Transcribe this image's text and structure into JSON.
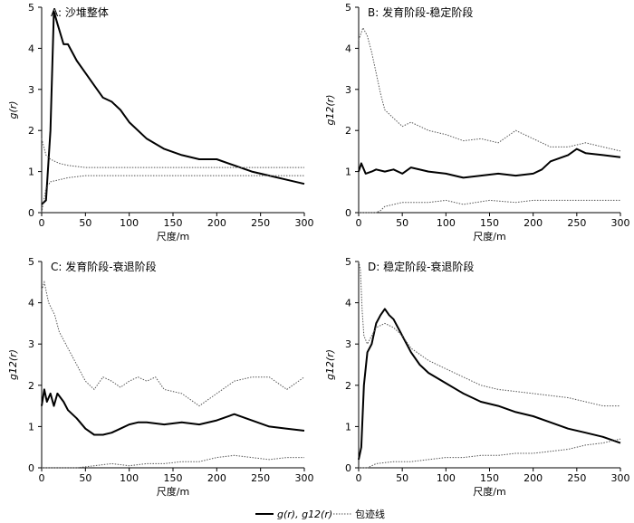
{
  "chart_data": [
    {
      "type": "line",
      "title": "A: 沙堆整体",
      "xlabel": "尺度/m",
      "ylabel": "g(r)",
      "xlim": [
        0,
        300
      ],
      "ylim": [
        0,
        5
      ],
      "xticks": [
        "0",
        "50",
        "100",
        "150",
        "200",
        "250",
        "300"
      ],
      "yticks": [
        "0",
        "1",
        "2",
        "3",
        "4",
        "5"
      ],
      "grid": false,
      "series": [
        {
          "role": "main",
          "style": "solid",
          "x": [
            0,
            5,
            10,
            14,
            18,
            25,
            30,
            40,
            50,
            60,
            70,
            80,
            90,
            100,
            120,
            140,
            160,
            180,
            200,
            220,
            240,
            260,
            280,
            300
          ],
          "y": [
            0.2,
            0.3,
            2.0,
            4.9,
            4.6,
            4.1,
            4.1,
            3.7,
            3.4,
            3.1,
            2.8,
            2.7,
            2.5,
            2.2,
            1.8,
            1.55,
            1.4,
            1.3,
            1.3,
            1.15,
            1.0,
            0.9,
            0.8,
            0.7
          ]
        },
        {
          "role": "envelope-upper",
          "style": "dotted",
          "x": [
            0,
            5,
            10,
            20,
            30,
            50,
            100,
            150,
            200,
            250,
            300
          ],
          "y": [
            1.8,
            1.4,
            1.3,
            1.2,
            1.15,
            1.1,
            1.1,
            1.1,
            1.1,
            1.1,
            1.1
          ]
        },
        {
          "role": "envelope-lower",
          "style": "dotted",
          "x": [
            0,
            5,
            10,
            20,
            30,
            50,
            100,
            150,
            200,
            250,
            300
          ],
          "y": [
            0.0,
            0.6,
            0.75,
            0.8,
            0.85,
            0.9,
            0.9,
            0.9,
            0.9,
            0.9,
            0.9
          ]
        }
      ]
    },
    {
      "type": "line",
      "title": "B: 发育阶段-稳定阶段",
      "xlabel": "尺度/m",
      "ylabel": "g12(r)",
      "xlim": [
        0,
        300
      ],
      "ylim": [
        0,
        5
      ],
      "xticks": [
        "0",
        "50",
        "100",
        "150",
        "200",
        "250",
        "300"
      ],
      "yticks": [
        "0",
        "1",
        "2",
        "3",
        "4",
        "5"
      ],
      "grid": false,
      "series": [
        {
          "role": "main",
          "style": "solid",
          "x": [
            0,
            3,
            8,
            15,
            20,
            30,
            40,
            50,
            60,
            80,
            100,
            120,
            140,
            160,
            180,
            200,
            210,
            220,
            240,
            250,
            260,
            280,
            300
          ],
          "y": [
            1.0,
            1.2,
            0.95,
            1.0,
            1.05,
            1.0,
            1.05,
            0.95,
            1.1,
            1.0,
            0.95,
            0.85,
            0.9,
            0.95,
            0.9,
            0.95,
            1.05,
            1.25,
            1.4,
            1.55,
            1.45,
            1.4,
            1.35
          ]
        },
        {
          "role": "envelope-upper",
          "style": "dotted",
          "x": [
            0,
            5,
            10,
            15,
            20,
            25,
            30,
            40,
            50,
            60,
            80,
            100,
            120,
            140,
            160,
            170,
            180,
            200,
            220,
            240,
            260,
            280,
            300
          ],
          "y": [
            4.2,
            4.5,
            4.3,
            3.9,
            3.4,
            2.9,
            2.5,
            2.3,
            2.1,
            2.2,
            2.0,
            1.9,
            1.75,
            1.8,
            1.7,
            1.85,
            2.0,
            1.8,
            1.6,
            1.6,
            1.7,
            1.6,
            1.5
          ]
        },
        {
          "role": "envelope-lower",
          "style": "dotted",
          "x": [
            0,
            20,
            25,
            30,
            50,
            80,
            100,
            120,
            150,
            180,
            200,
            250,
            300
          ],
          "y": [
            0.0,
            0.0,
            0.05,
            0.15,
            0.25,
            0.25,
            0.3,
            0.2,
            0.3,
            0.25,
            0.3,
            0.3,
            0.3
          ]
        }
      ]
    },
    {
      "type": "line",
      "title": "C: 发育阶段-衰退阶段",
      "xlabel": "尺度/m",
      "ylabel": "g12(r)",
      "xlim": [
        0,
        300
      ],
      "ylim": [
        0,
        5
      ],
      "xticks": [
        "0",
        "50",
        "100",
        "150",
        "200",
        "250",
        "300"
      ],
      "yticks": [
        "0",
        "1",
        "2",
        "3",
        "4",
        "5"
      ],
      "grid": false,
      "series": [
        {
          "role": "main",
          "style": "solid",
          "x": [
            0,
            3,
            6,
            10,
            14,
            18,
            25,
            30,
            40,
            50,
            60,
            70,
            80,
            90,
            100,
            110,
            120,
            140,
            160,
            180,
            200,
            220,
            240,
            260,
            280,
            300
          ],
          "y": [
            1.5,
            1.9,
            1.6,
            1.8,
            1.5,
            1.8,
            1.6,
            1.4,
            1.2,
            0.95,
            0.8,
            0.8,
            0.85,
            0.95,
            1.05,
            1.1,
            1.1,
            1.05,
            1.1,
            1.05,
            1.15,
            1.3,
            1.15,
            1.0,
            0.95,
            0.9
          ]
        },
        {
          "role": "envelope-upper",
          "style": "dotted",
          "x": [
            0,
            3,
            8,
            15,
            20,
            30,
            40,
            50,
            60,
            70,
            80,
            90,
            100,
            110,
            120,
            130,
            140,
            160,
            180,
            200,
            220,
            240,
            260,
            280,
            300
          ],
          "y": [
            4.3,
            4.5,
            4.0,
            3.7,
            3.3,
            2.9,
            2.5,
            2.1,
            1.9,
            2.2,
            2.1,
            1.95,
            2.1,
            2.2,
            2.1,
            2.2,
            1.9,
            1.8,
            1.5,
            1.8,
            2.1,
            2.2,
            2.2,
            1.9,
            2.2
          ]
        },
        {
          "role": "envelope-lower",
          "style": "dotted",
          "x": [
            0,
            40,
            60,
            80,
            100,
            120,
            140,
            160,
            180,
            200,
            220,
            240,
            260,
            280,
            300
          ],
          "y": [
            0.0,
            0.0,
            0.05,
            0.1,
            0.05,
            0.1,
            0.1,
            0.15,
            0.15,
            0.25,
            0.3,
            0.25,
            0.2,
            0.25,
            0.25
          ]
        }
      ]
    },
    {
      "type": "line",
      "title": "D: 稳定阶段-衰退阶段",
      "xlabel": "尺度/m",
      "ylabel": "g12(r)",
      "xlim": [
        0,
        300
      ],
      "ylim": [
        0,
        5
      ],
      "xticks": [
        "0",
        "50",
        "100",
        "150",
        "200",
        "250",
        "300"
      ],
      "yticks": [
        "0",
        "1",
        "2",
        "3",
        "4",
        "5"
      ],
      "grid": false,
      "series": [
        {
          "role": "main",
          "style": "solid",
          "x": [
            0,
            3,
            6,
            10,
            15,
            20,
            25,
            30,
            35,
            40,
            50,
            60,
            70,
            80,
            100,
            120,
            140,
            160,
            180,
            200,
            220,
            240,
            260,
            280,
            300
          ],
          "y": [
            0.2,
            0.5,
            2.0,
            2.8,
            3.0,
            3.5,
            3.7,
            3.85,
            3.7,
            3.6,
            3.2,
            2.8,
            2.5,
            2.3,
            2.05,
            1.8,
            1.6,
            1.5,
            1.35,
            1.25,
            1.1,
            0.95,
            0.85,
            0.75,
            0.6
          ]
        },
        {
          "role": "envelope-upper",
          "style": "dotted",
          "x": [
            0,
            2,
            4,
            6,
            10,
            15,
            20,
            30,
            40,
            50,
            60,
            80,
            100,
            120,
            140,
            160,
            180,
            200,
            220,
            240,
            260,
            280,
            300
          ],
          "y": [
            5.0,
            4.8,
            3.8,
            3.2,
            3.0,
            3.2,
            3.4,
            3.5,
            3.4,
            3.2,
            2.9,
            2.6,
            2.4,
            2.2,
            2.0,
            1.9,
            1.85,
            1.8,
            1.75,
            1.7,
            1.6,
            1.5,
            1.5
          ]
        },
        {
          "role": "envelope-lower",
          "style": "dotted",
          "x": [
            0,
            10,
            15,
            20,
            40,
            60,
            80,
            100,
            120,
            140,
            160,
            180,
            200,
            220,
            240,
            260,
            280,
            300
          ],
          "y": [
            0.0,
            0.0,
            0.05,
            0.1,
            0.15,
            0.15,
            0.2,
            0.25,
            0.25,
            0.3,
            0.3,
            0.35,
            0.35,
            0.4,
            0.45,
            0.55,
            0.6,
            0.7
          ]
        }
      ]
    }
  ],
  "legend": {
    "main_label": "g(r), g12(r)",
    "envelope_label": "包迹线",
    "placement": "bottom-center"
  },
  "colors": {
    "line": "#000000",
    "envelope": "#555555",
    "axis": "#000000"
  }
}
